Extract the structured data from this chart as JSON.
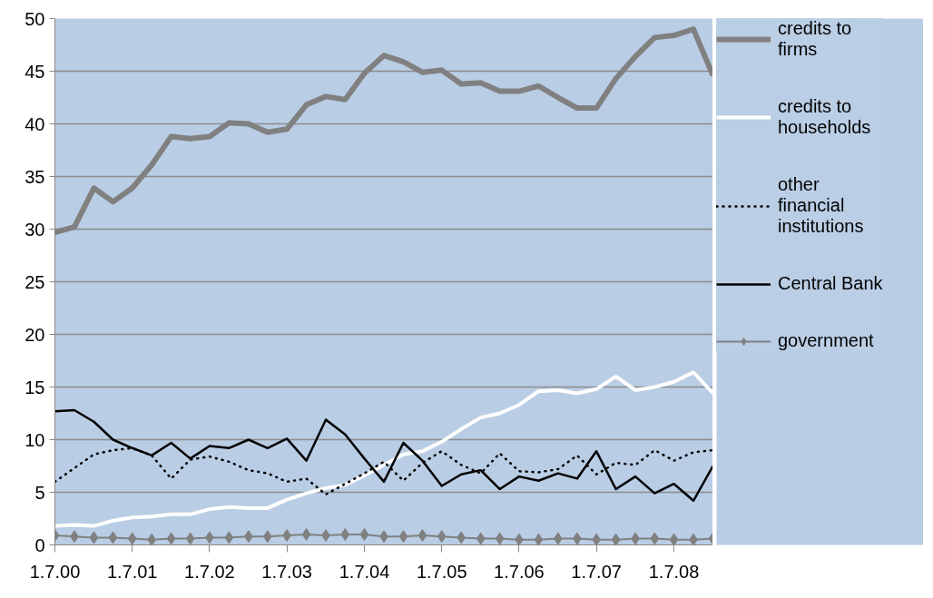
{
  "chart_data": {
    "type": "line",
    "x": [
      "2000-07-01",
      "2000-10-01",
      "2001-01-01",
      "2001-04-01",
      "2001-07-01",
      "2001-10-01",
      "2002-01-01",
      "2002-04-01",
      "2002-07-01",
      "2002-10-01",
      "2003-01-01",
      "2003-04-01",
      "2003-07-01",
      "2003-10-01",
      "2004-01-01",
      "2004-04-01",
      "2004-07-01",
      "2004-10-01",
      "2005-01-01",
      "2005-04-01",
      "2005-07-01",
      "2005-10-01",
      "2006-01-01",
      "2006-04-01",
      "2006-07-01",
      "2006-10-01",
      "2007-01-01",
      "2007-04-01",
      "2007-07-01",
      "2007-10-01",
      "2008-01-01",
      "2008-04-01",
      "2008-07-01",
      "2008-10-01",
      "2009-01-01"
    ],
    "series": [
      {
        "name": "credits to firms",
        "color": "#808080",
        "line_style": "solid",
        "values": [
          29.7,
          30.2,
          33.9,
          32.6,
          33.9,
          36.1,
          38.8,
          38.6,
          38.8,
          40.1,
          40.0,
          39.2,
          39.5,
          41.8,
          42.6,
          42.3,
          44.8,
          46.5,
          45.9,
          44.9,
          45.1,
          43.8,
          43.9,
          43.1,
          43.1,
          43.6,
          42.5,
          41.5,
          41.5,
          44.3,
          46.4,
          48.2,
          48.4,
          49.0,
          44.6
        ]
      },
      {
        "name": "credits to households",
        "color": "#ffffff",
        "line_style": "solid",
        "values": [
          1.8,
          1.9,
          1.8,
          2.3,
          2.6,
          2.7,
          2.9,
          2.9,
          3.4,
          3.6,
          3.5,
          3.5,
          4.3,
          4.9,
          5.4,
          5.7,
          6.6,
          7.6,
          8.6,
          8.9,
          9.8,
          11.0,
          12.1,
          12.5,
          13.3,
          14.6,
          14.7,
          14.4,
          14.8,
          16.0,
          14.7,
          15.0,
          15.5,
          16.4,
          14.4
        ]
      },
      {
        "name": "other financial institutions",
        "color": "#000000",
        "line_style": "dotted",
        "values": [
          6.0,
          7.3,
          8.6,
          9.0,
          9.2,
          8.5,
          6.3,
          8.1,
          8.4,
          7.9,
          7.1,
          6.8,
          6.0,
          6.3,
          4.8,
          5.8,
          6.8,
          7.9,
          6.1,
          7.8,
          8.9,
          7.6,
          6.8,
          8.7,
          7.0,
          6.9,
          7.2,
          8.5,
          6.7,
          7.8,
          7.6,
          9.0,
          8.0,
          8.8,
          9.0
        ]
      },
      {
        "name": "Central Bank",
        "color": "#000000",
        "line_style": "solid",
        "values": [
          12.7,
          12.8,
          11.7,
          10.0,
          9.2,
          8.5,
          9.7,
          8.2,
          9.4,
          9.2,
          10.0,
          9.2,
          10.1,
          8.0,
          11.9,
          10.5,
          8.2,
          6.0,
          9.7,
          8.0,
          5.6,
          6.7,
          7.1,
          5.3,
          6.5,
          6.1,
          6.8,
          6.3,
          8.9,
          5.3,
          6.5,
          4.9,
          5.8,
          4.2,
          7.5
        ]
      },
      {
        "name": "government",
        "color": "#808080",
        "line_style": "solid",
        "marker": "diamond",
        "values": [
          0.9,
          0.8,
          0.7,
          0.7,
          0.6,
          0.5,
          0.6,
          0.6,
          0.7,
          0.7,
          0.8,
          0.8,
          0.9,
          1.0,
          0.9,
          1.0,
          1.0,
          0.8,
          0.8,
          0.9,
          0.8,
          0.7,
          0.6,
          0.6,
          0.5,
          0.5,
          0.6,
          0.6,
          0.5,
          0.5,
          0.6,
          0.6,
          0.5,
          0.5,
          0.6
        ]
      }
    ],
    "xlim": [
      "2000-07-01",
      "2009-01-01"
    ],
    "xticks": [
      {
        "value": "2000-07-01",
        "label": "1.7.00"
      },
      {
        "value": "2001-07-01",
        "label": "1.7.01"
      },
      {
        "value": "2002-07-01",
        "label": "1.7.02"
      },
      {
        "value": "2003-07-01",
        "label": "1.7.03"
      },
      {
        "value": "2004-07-01",
        "label": "1.7.04"
      },
      {
        "value": "2005-07-01",
        "label": "1.7.05"
      },
      {
        "value": "2006-07-01",
        "label": "1.7.06"
      },
      {
        "value": "2007-07-01",
        "label": "1.7.07"
      },
      {
        "value": "2008-07-01",
        "label": "1.7.08"
      }
    ],
    "ylim": [
      0,
      50
    ],
    "yticks": [
      0,
      5,
      10,
      15,
      20,
      25,
      30,
      35,
      40,
      45,
      50
    ],
    "grid": "y",
    "legend": "right"
  }
}
